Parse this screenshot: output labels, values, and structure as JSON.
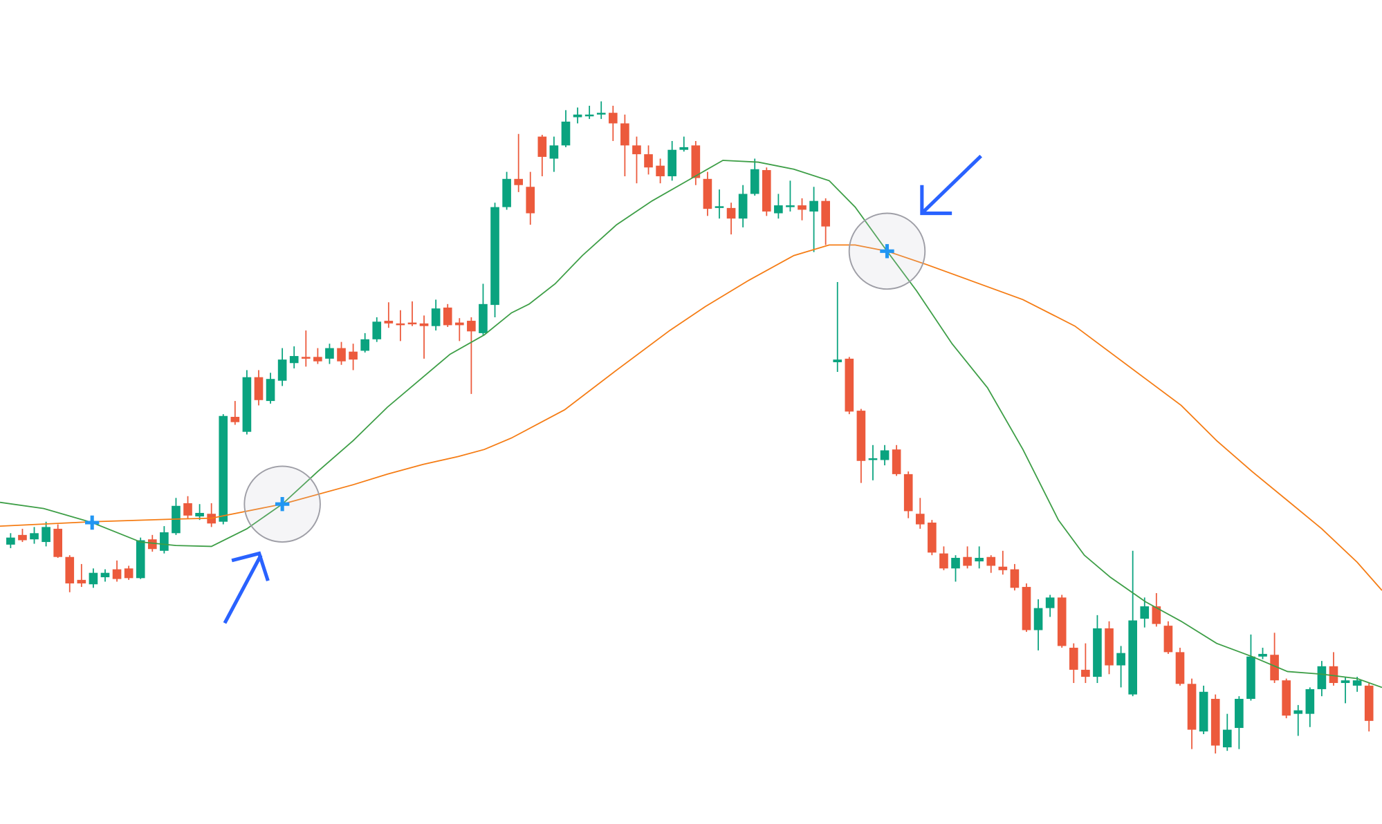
{
  "chart_data": {
    "type": "candlestick",
    "xlim": [
      -0.9,
      116.1
    ],
    "ylim": [
      0,
      935
    ],
    "up_color": "#0aa37f",
    "down_color": "#ec5a3c",
    "ohlc": [
      [
        317,
        330,
        313,
        325
      ],
      [
        328,
        335,
        320,
        322
      ],
      [
        323,
        337,
        318,
        330
      ],
      [
        320,
        343,
        315,
        337
      ],
      [
        335,
        340,
        302,
        303
      ],
      [
        303,
        305,
        263,
        273
      ],
      [
        277,
        295,
        269,
        273
      ],
      [
        272,
        290,
        268,
        285
      ],
      [
        280,
        289,
        275,
        285
      ],
      [
        289,
        299,
        275,
        278
      ],
      [
        290,
        293,
        277,
        279
      ],
      [
        279,
        325,
        278,
        322
      ],
      [
        323,
        328,
        309,
        312
      ],
      [
        310,
        338,
        307,
        331
      ],
      [
        330,
        370,
        328,
        361
      ],
      [
        364,
        372,
        347,
        350
      ],
      [
        349,
        363,
        345,
        353
      ],
      [
        352,
        364,
        337,
        341
      ],
      [
        343,
        465,
        340,
        463
      ],
      [
        462,
        480,
        453,
        456
      ],
      [
        445,
        515,
        442,
        507
      ],
      [
        507,
        515,
        475,
        481
      ],
      [
        480,
        512,
        477,
        505
      ],
      [
        503,
        540,
        497,
        527
      ],
      [
        523,
        542,
        517,
        531
      ],
      [
        530,
        560,
        519,
        528
      ],
      [
        530,
        540,
        522,
        525
      ],
      [
        528,
        545,
        522,
        540
      ],
      [
        540,
        547,
        521,
        525
      ],
      [
        536,
        545,
        515,
        527
      ],
      [
        537,
        557,
        535,
        550
      ],
      [
        550,
        575,
        547,
        570
      ],
      [
        571,
        592,
        563,
        568
      ],
      [
        568,
        583,
        548,
        566
      ],
      [
        569,
        593,
        565,
        567
      ],
      [
        568,
        577,
        528,
        565
      ],
      [
        565,
        595,
        560,
        585
      ],
      [
        586,
        590,
        564,
        566
      ],
      [
        569,
        574,
        548,
        566
      ],
      [
        571,
        575,
        488,
        559
      ],
      [
        557,
        613,
        555,
        590
      ],
      [
        589,
        705,
        575,
        700
      ],
      [
        700,
        740,
        697,
        732
      ],
      [
        732,
        783,
        717,
        725
      ],
      [
        723,
        740,
        680,
        693
      ],
      [
        780,
        782,
        735,
        757
      ],
      [
        755,
        780,
        740,
        770
      ],
      [
        770,
        810,
        768,
        797
      ],
      [
        802,
        813,
        795,
        805
      ],
      [
        803,
        815,
        800,
        805
      ],
      [
        805,
        820,
        800,
        807
      ],
      [
        807,
        815,
        775,
        795
      ],
      [
        795,
        805,
        735,
        770
      ],
      [
        770,
        780,
        727,
        760
      ],
      [
        760,
        770,
        737,
        745
      ],
      [
        747,
        755,
        727,
        735
      ],
      [
        735,
        775,
        730,
        765
      ],
      [
        765,
        780,
        763,
        768
      ],
      [
        770,
        775,
        725,
        733
      ],
      [
        732,
        740,
        690,
        698
      ],
      [
        699,
        720,
        687,
        701
      ],
      [
        699,
        705,
        669,
        687
      ],
      [
        687,
        725,
        677,
        715
      ],
      [
        715,
        755,
        713,
        743
      ],
      [
        742,
        745,
        690,
        695
      ],
      [
        693,
        715,
        687,
        702
      ],
      [
        700,
        730,
        695,
        702
      ],
      [
        702,
        710,
        685,
        697
      ],
      [
        695,
        723,
        649,
        707
      ],
      [
        707,
        710,
        657,
        678
      ],
      [
        524,
        615,
        513,
        527
      ],
      [
        528,
        530,
        465,
        468
      ],
      [
        469,
        471,
        387,
        412
      ],
      [
        413,
        430,
        390,
        415
      ],
      [
        413,
        430,
        407,
        424
      ],
      [
        425,
        430,
        395,
        397
      ],
      [
        397,
        400,
        347,
        355
      ],
      [
        352,
        370,
        335,
        340
      ],
      [
        342,
        345,
        305,
        308
      ],
      [
        307,
        315,
        288,
        290
      ],
      [
        290,
        305,
        275,
        302
      ],
      [
        303,
        315,
        290,
        293
      ],
      [
        298,
        315,
        290,
        302
      ],
      [
        303,
        305,
        285,
        293
      ],
      [
        292,
        310,
        283,
        288
      ],
      [
        289,
        295,
        265,
        268
      ],
      [
        269,
        273,
        218,
        220
      ],
      [
        220,
        255,
        197,
        245
      ],
      [
        245,
        260,
        235,
        257
      ],
      [
        257,
        260,
        200,
        202
      ],
      [
        200,
        205,
        160,
        175
      ],
      [
        175,
        205,
        160,
        167
      ],
      [
        167,
        237,
        160,
        222
      ],
      [
        222,
        230,
        170,
        180
      ],
      [
        180,
        202,
        155,
        194
      ],
      [
        147,
        310,
        145,
        231
      ],
      [
        233,
        257,
        223,
        247
      ],
      [
        247,
        262,
        224,
        227
      ],
      [
        225,
        230,
        193,
        195
      ],
      [
        195,
        200,
        157,
        159
      ],
      [
        159,
        165,
        85,
        107
      ],
      [
        105,
        157,
        102,
        150
      ],
      [
        142,
        147,
        80,
        89
      ],
      [
        87,
        125,
        83,
        107
      ],
      [
        109,
        145,
        85,
        142
      ],
      [
        142,
        215,
        140,
        190
      ],
      [
        190,
        200,
        187,
        193
      ],
      [
        192,
        217,
        160,
        163
      ],
      [
        163,
        165,
        120,
        123
      ],
      [
        125,
        135,
        100,
        129
      ],
      [
        125,
        155,
        110,
        153
      ],
      [
        153,
        185,
        145,
        179
      ],
      [
        179,
        195,
        157,
        160
      ],
      [
        160,
        167,
        137,
        163
      ],
      [
        157,
        167,
        150,
        163
      ],
      [
        157,
        160,
        105,
        117
      ]
    ],
    "lines": [
      {
        "color": "#3d9e46",
        "x": [
          -0.9,
          2.8,
          6.9,
          11.0,
          14.0,
          17.0,
          20.0,
          23.0,
          26.0,
          29.0,
          31.9,
          34.9,
          37.2,
          40.1,
          42.4,
          43.9,
          46.1,
          48.4,
          51.3,
          54.3,
          57.3,
          60.3,
          63.3,
          66.3,
          69.3,
          71.5,
          74.2,
          76.7,
          79.7,
          82.7,
          85.7,
          88.7,
          90.9,
          93.1,
          96.1,
          99.1,
          102.1,
          105.1,
          108.1,
          111.0,
          114.0,
          116.1
        ],
        "values": [
          365,
          358,
          342,
          320,
          316,
          315,
          335,
          363,
          400,
          435,
          473,
          507,
          533,
          555,
          580,
          590,
          613,
          645,
          680,
          707,
          730,
          753,
          751,
          743,
          730,
          700,
          650,
          605,
          545,
          495,
          425,
          345,
          305,
          280,
          252,
          230,
          205,
          190,
          173,
          170,
          165,
          155
        ]
      },
      {
        "color": "#f57c14",
        "x": [
          -0.9,
          6.9,
          14.0,
          17.0,
          23.0,
          29.0,
          31.9,
          34.9,
          37.9,
          40.1,
          42.4,
          46.9,
          51.3,
          55.8,
          58.8,
          62.5,
          66.3,
          69.3,
          71.5,
          74.2,
          77.5,
          81.2,
          85.7,
          90.1,
          93.1,
          96.1,
          99.1,
          102.1,
          105.1,
          108.1,
          111.0,
          114.0,
          116.1
        ],
        "values": [
          338,
          343,
          346,
          347,
          363,
          385,
          397,
          408,
          417,
          425,
          438,
          470,
          515,
          560,
          587,
          617,
          645,
          657,
          657,
          650,
          635,
          617,
          595,
          565,
          535,
          505,
          475,
          435,
          400,
          367,
          335,
          297,
          265
        ]
      }
    ],
    "crossovers": {
      "color": "#2196f3",
      "x": [
        6.9,
        23.0,
        74.2
      ],
      "values": [
        342,
        363,
        650
      ],
      "highlight": [
        false,
        true,
        true
      ]
    }
  }
}
